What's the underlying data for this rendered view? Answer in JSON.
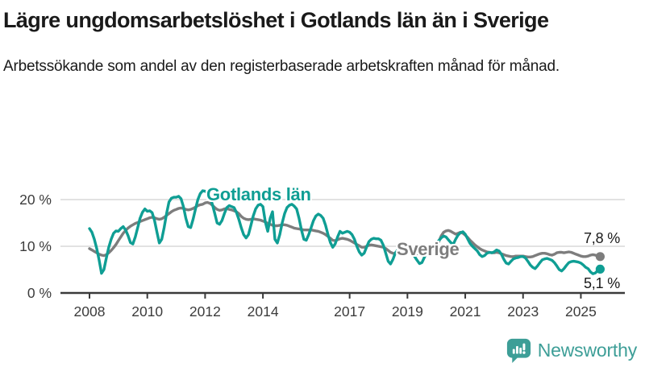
{
  "chart_data": {
    "type": "line",
    "title": "Lägre ungdomsarbetslöshet i Gotlands län än i Sverige",
    "subtitle": "Arbetssökande som andel av den registerbaserade arbetskraften månad för månad.",
    "x_unit": "month",
    "x_start": "2008-01",
    "x_end": "2025-09",
    "x_tick_years": [
      2008,
      2010,
      2012,
      2014,
      2017,
      2019,
      2021,
      2023,
      2025
    ],
    "y_ticks": [
      {
        "value": 0,
        "label": "0 %"
      },
      {
        "value": 10,
        "label": "10 %"
      },
      {
        "value": 20,
        "label": "20 %"
      }
    ],
    "ylim": [
      0,
      22.5
    ],
    "grid": "horizontal",
    "legend_position": "inline-labels-on-lines",
    "series": [
      {
        "name": "Sverige",
        "color": "#7d7d7d",
        "end_value_label": "7,8 %",
        "end_value": 7.8,
        "values": [
          9.5,
          9.2,
          8.9,
          8.6,
          8.3,
          8.1,
          8,
          8.2,
          8.6,
          9.1,
          9.7,
          10.4,
          11.2,
          12,
          12.8,
          13.4,
          13.9,
          14.3,
          14.6,
          14.9,
          15.1,
          15.3,
          15.5,
          15.7,
          15.9,
          16.1,
          16.2,
          16.1,
          15.9,
          15.8,
          15.9,
          16.2,
          16.6,
          17,
          17.4,
          17.7,
          17.9,
          18.1,
          18.2,
          18.1,
          17.9,
          17.8,
          17.9,
          18.1,
          18.4,
          18.7,
          18.9,
          19,
          19.3,
          19.4,
          19.2,
          18.8,
          18.3,
          17.9,
          17.7,
          17.8,
          18,
          18.1,
          17.9,
          17.8,
          17.6,
          17.4,
          17,
          16.4,
          16,
          15.8,
          15.7,
          15.8,
          15.9,
          15.8,
          15.7,
          15.6,
          15.4,
          15.2,
          14.9,
          14.7,
          14.5,
          14.4,
          14.4,
          14.5,
          14.6,
          14.6,
          14.5,
          14.3,
          14.1,
          13.9,
          13.8,
          13.7,
          13.6,
          13.5,
          13.5,
          13.5,
          13.5,
          13.4,
          13.3,
          13.2,
          13,
          12.8,
          12.5,
          12.1,
          11.7,
          11.3,
          11.2,
          11.4,
          11.6,
          11.7,
          11.6,
          11.5,
          11.3,
          11,
          10.7,
          10.4,
          10.1,
          9.8,
          9.8,
          10,
          10.2,
          10.3,
          10.2,
          10.1,
          10,
          9.9,
          9.8,
          9.5,
          9.1,
          8.7,
          8.5,
          8.4,
          8.5,
          8.6,
          8.7,
          8.7,
          8.7,
          8.7,
          8.6,
          8.5,
          8.4,
          8.4,
          8.5,
          8.6,
          8.8,
          9,
          9.3,
          9.6,
          10.2,
          11,
          12.2,
          13,
          13.3,
          13.4,
          13.2,
          12.9,
          12.6,
          12.8,
          13,
          12.8,
          12.4,
          11.9,
          11.3,
          10.8,
          10.3,
          9.9,
          9.5,
          9.2,
          9,
          8.8,
          8.7,
          8.6,
          8.6,
          8.7,
          8.6,
          8.4,
          8.2,
          8,
          7.9,
          7.8,
          7.8,
          7.9,
          7.9,
          7.9,
          7.9,
          7.8,
          7.7,
          7.7,
          7.8,
          8,
          8.2,
          8.4,
          8.5,
          8.5,
          8.4,
          8.2,
          8.1,
          8.3,
          8.6,
          8.7,
          8.7,
          8.6,
          8.7,
          8.8,
          8.7,
          8.5,
          8.3,
          8.1,
          7.9,
          7.8,
          7.8,
          7.9,
          8.1,
          8.2,
          8.1,
          7.9,
          7.8
        ]
      },
      {
        "name": "Gotlands län",
        "color": "#0f9e94",
        "end_value_label": "5,1 %",
        "end_value": 5.1,
        "values": [
          13.8,
          13,
          11.5,
          9.5,
          7,
          4.2,
          5,
          7.5,
          9.8,
          11.5,
          12.8,
          13.3,
          13.2,
          13.8,
          14.2,
          13.5,
          12.3,
          10.8,
          10.5,
          12,
          14,
          16,
          17.3,
          18,
          17.5,
          17.6,
          17.2,
          15.5,
          13,
          10.7,
          11.5,
          14,
          17,
          19.5,
          20.3,
          20.5,
          20.5,
          20.7,
          20.2,
          18.5,
          16,
          14.2,
          14,
          15.8,
          18,
          20,
          21.3,
          21.9,
          21.8,
          21.5,
          20.5,
          19,
          17,
          15,
          14.7,
          15.5,
          17,
          18.3,
          18.7,
          18.5,
          18.3,
          17.3,
          15.8,
          14,
          12.5,
          11.8,
          12.5,
          14.5,
          16.5,
          18,
          18.8,
          19,
          18.5,
          15.2,
          13.2,
          16,
          17.4,
          11.5,
          10.7,
          12.5,
          15,
          17,
          18.3,
          18.8,
          19,
          18.6,
          18,
          16,
          13.5,
          11.5,
          11.3,
          12.5,
          14,
          15.5,
          16.5,
          16.9,
          16.6,
          16,
          14.5,
          12.5,
          10.8,
          9.8,
          10.5,
          12,
          13.2,
          12.8,
          13,
          13.2,
          13,
          12.5,
          11.5,
          10,
          8.8,
          8.1,
          8.5,
          9.8,
          11,
          11.5,
          11.7,
          11.6,
          11.6,
          11.3,
          10.2,
          8.5,
          6.8,
          6.2,
          7.2,
          8.6,
          9.3,
          9.5,
          9.5,
          9.4,
          9.3,
          9,
          8.5,
          7.8,
          7,
          6.3,
          6.5,
          7.6,
          8.6,
          9.2,
          9.7,
          10.2,
          10.5,
          11.2,
          11.8,
          12.2,
          12,
          11.4,
          10.8,
          10.4,
          11.5,
          12.4,
          12.9,
          13.1,
          12.6,
          11.6,
          10.6,
          10,
          9.5,
          9,
          8.2,
          7.8,
          8,
          8.5,
          8.7,
          8.6,
          8.8,
          9.2,
          9,
          8.3,
          7.2,
          6.4,
          6.2,
          6.8,
          7.3,
          7.5,
          7.6,
          7.8,
          7.8,
          7.5,
          6.8,
          6,
          5.5,
          5.2,
          5.8,
          6.5,
          7.1,
          7.3,
          7.4,
          7.2,
          7,
          6.5,
          5.8,
          5,
          4.7,
          5.2,
          5.9,
          6.5,
          6.7,
          6.8,
          6.7,
          6.6,
          6.4,
          6,
          5.5,
          5.2,
          4.5,
          4.1,
          4.3,
          4.8,
          5.1
        ]
      }
    ]
  },
  "branding": {
    "name": "Newsworthy",
    "color": "#3d9e97",
    "icon": "bar-chart-speech-bubble-icon"
  }
}
